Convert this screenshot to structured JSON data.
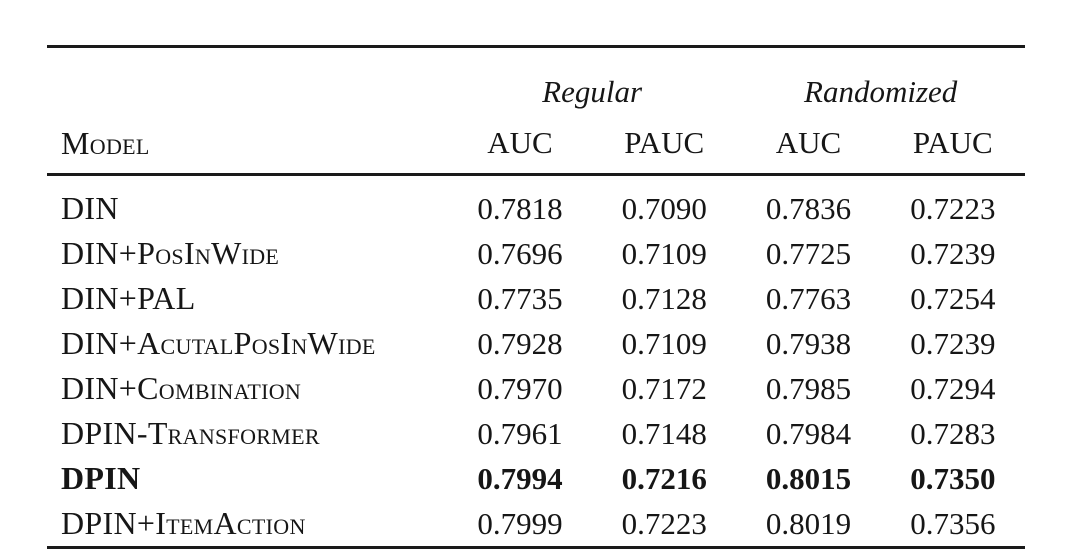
{
  "page": {
    "background": "#ffffff",
    "text_color": "#1a1a1a",
    "rule_color": "#1a1a1a"
  },
  "table": {
    "column_groups": [
      {
        "label": "Regular",
        "span": 2
      },
      {
        "label": "Randomized",
        "span": 2
      }
    ],
    "model_header": "Model",
    "sub_headers": [
      "AUC",
      "PAUC",
      "AUC",
      "PAUC"
    ],
    "rows": [
      {
        "model": "DIN",
        "bold": false,
        "values": [
          "0.7818",
          "0.7090",
          "0.7836",
          "0.7223"
        ]
      },
      {
        "model": "DIN+PosInWide",
        "bold": false,
        "values": [
          "0.7696",
          "0.7109",
          "0.7725",
          "0.7239"
        ]
      },
      {
        "model": "DIN+PAL",
        "bold": false,
        "values": [
          "0.7735",
          "0.7128",
          "0.7763",
          "0.7254"
        ]
      },
      {
        "model": "DIN+AcutalPosInWide",
        "bold": false,
        "values": [
          "0.7928",
          "0.7109",
          "0.7938",
          "0.7239"
        ]
      },
      {
        "model": "DIN+Combination",
        "bold": false,
        "values": [
          "0.7970",
          "0.7172",
          "0.7985",
          "0.7294"
        ]
      },
      {
        "model": "DPIN-Transformer",
        "bold": false,
        "values": [
          "0.7961",
          "0.7148",
          "0.7984",
          "0.7283"
        ]
      },
      {
        "model": "DPIN",
        "bold": true,
        "values": [
          "0.7994",
          "0.7216",
          "0.8015",
          "0.7350"
        ]
      },
      {
        "model": "DPIN+ItemAction",
        "bold": false,
        "values": [
          "0.7999",
          "0.7223",
          "0.8019",
          "0.7356"
        ]
      }
    ]
  }
}
